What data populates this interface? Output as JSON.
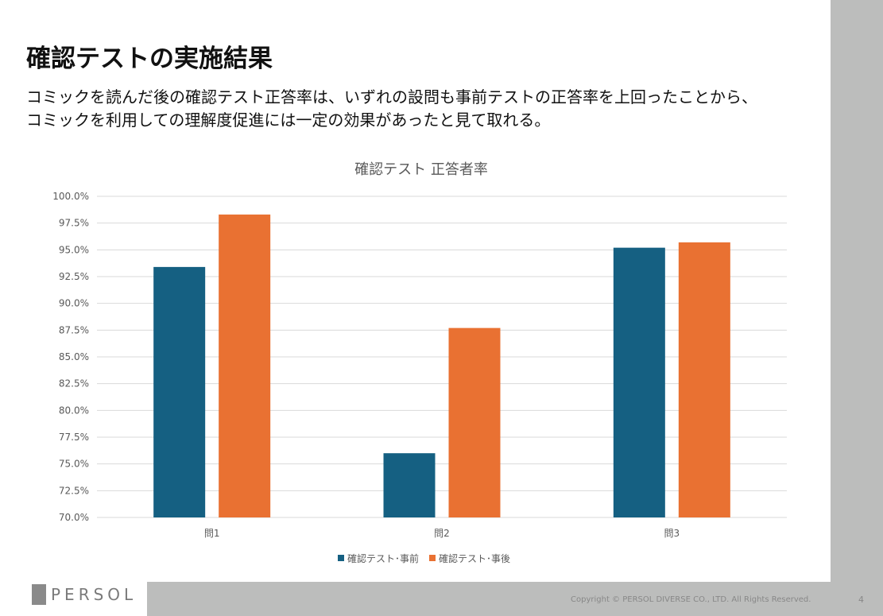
{
  "slide": {
    "title": "確認テストの実施結果",
    "lead_lines": [
      "コミックを読んだ後の確認テスト正答率は、いずれの設問も事前テストの正答率を上回ったことから、",
      "コミックを利用しての理解度促進には一定の効果があったと見て取れる。"
    ]
  },
  "chart_data": {
    "type": "bar",
    "title": "確認テスト 正答者率",
    "categories": [
      "問1",
      "問2",
      "問3"
    ],
    "series": [
      {
        "name": "確認テスト･事前",
        "color": "#156082",
        "values": [
          93.4,
          76.0,
          95.2
        ]
      },
      {
        "name": "確認テスト･事後",
        "color": "#e97132",
        "values": [
          98.3,
          87.7,
          95.7
        ]
      }
    ],
    "ylim": [
      70,
      100
    ],
    "yticks": [
      "70.0%",
      "72.5%",
      "75.0%",
      "77.5%",
      "80.0%",
      "82.5%",
      "85.0%",
      "87.5%",
      "90.0%",
      "92.5%",
      "95.0%",
      "97.5%",
      "100.0%"
    ],
    "grid": true,
    "legend": "bottom"
  },
  "footer": {
    "logo": "PERSOL",
    "copyright": "Copyright © PERSOL DIVERSE CO., LTD. All Rights Reserved.",
    "page": "4"
  }
}
